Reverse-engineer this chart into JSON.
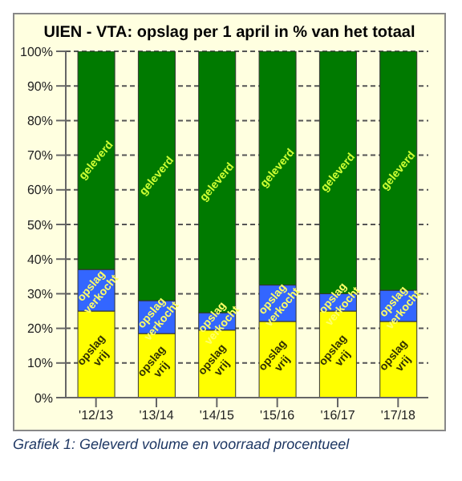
{
  "chart_data": {
    "type": "bar",
    "stacked": true,
    "title": "UIEN - VTA: opslag per 1 april in % van het totaal",
    "categories": [
      "'12/13",
      "'13/14",
      "'14/15",
      "'15/16",
      "'16/17",
      "'17/18"
    ],
    "series": [
      {
        "name": "opslag vrij",
        "color": "#ffff00",
        "values": [
          25,
          18.5,
          19.5,
          22,
          25,
          22
        ]
      },
      {
        "name": "opslag verkocht",
        "color": "#3366ff",
        "values": [
          12,
          9.5,
          5,
          10.5,
          5,
          9
        ]
      },
      {
        "name": "geleverd",
        "color": "#007a00",
        "values": [
          63,
          72,
          75.5,
          67.5,
          70,
          69
        ]
      }
    ],
    "ylim": [
      0,
      100
    ],
    "yticks": [
      {
        "value": 0,
        "label": "0%"
      },
      {
        "value": 10,
        "label": "10%"
      },
      {
        "value": 20,
        "label": "20%"
      },
      {
        "value": 30,
        "label": "30%"
      },
      {
        "value": 40,
        "label": "40%"
      },
      {
        "value": 50,
        "label": "50%"
      },
      {
        "value": 60,
        "label": "60%"
      },
      {
        "value": 70,
        "label": "70%"
      },
      {
        "value": 80,
        "label": "80%"
      },
      {
        "value": 90,
        "label": "90%"
      },
      {
        "value": 100,
        "label": "100%"
      }
    ],
    "grid": "y",
    "legend": false,
    "annotations": [
      "Grafiek 1: Geleverd volume en voorraad procentueel"
    ]
  }
}
